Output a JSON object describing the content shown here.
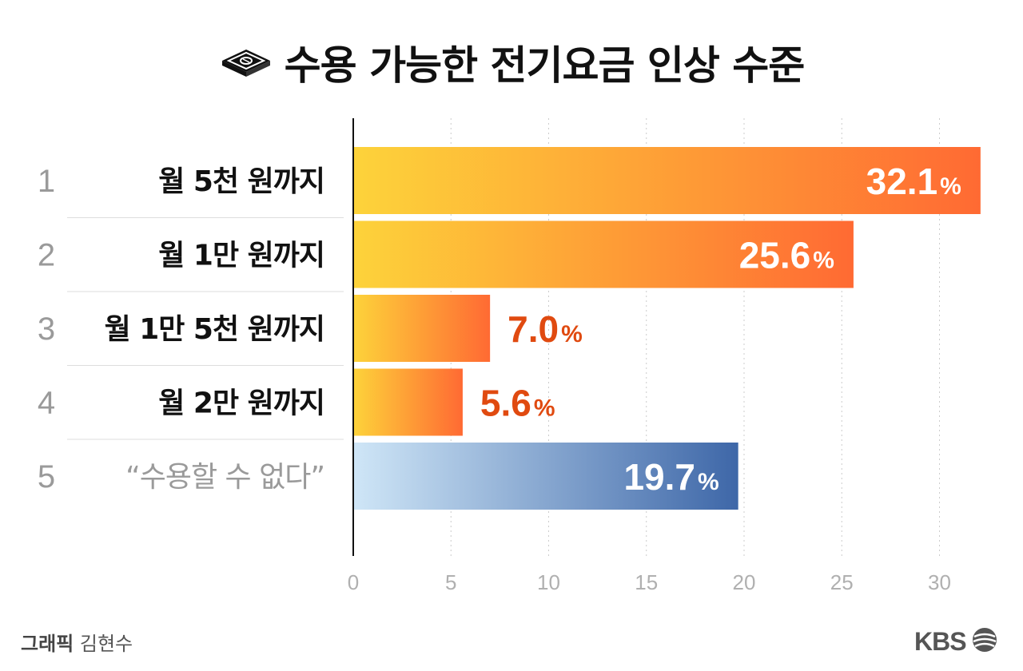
{
  "header": {
    "title": "수용 가능한 전기요금 인상 수준",
    "icon": "money-stack-icon"
  },
  "chart_data": {
    "type": "bar",
    "orientation": "horizontal",
    "title": "수용 가능한 전기요금 인상 수준",
    "rank_labels": [
      "1",
      "2",
      "3",
      "4",
      "5"
    ],
    "categories": [
      "월 5천 원까지",
      "월 1만 원까지",
      "월 1만 5천 원까지",
      "월 2만 원까지",
      "“수용할 수 없다”"
    ],
    "values": [
      32.1,
      25.6,
      7.0,
      5.6,
      19.7
    ],
    "value_labels": [
      "32.1",
      "25.6",
      "7.0",
      "5.6",
      "19.7"
    ],
    "unit": "%",
    "xlim": [
      0,
      32.1
    ],
    "xticks": [
      0,
      5,
      10,
      15,
      20,
      25,
      30
    ],
    "grid": "vertical dotted",
    "colors": {
      "accept_start": "#FDD33A",
      "accept_end": "#FF6A33",
      "reject_start": "#CFE6F7",
      "reject_end": "#3E67A8",
      "outside_label": "#E04A10",
      "rank": "#9A9A9A",
      "reject_label": "#9A9A9A"
    }
  },
  "footer": {
    "credit_role": "그래픽",
    "credit_name": "김현수",
    "logo_text": "KBS"
  }
}
